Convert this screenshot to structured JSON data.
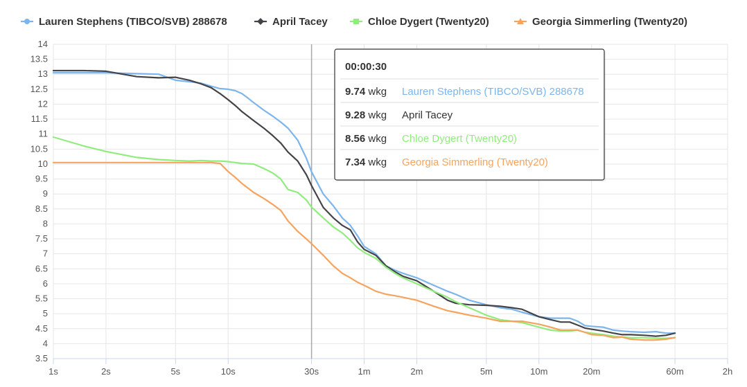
{
  "chart_data": {
    "type": "line",
    "x_scale": "log",
    "x_unit": "seconds",
    "x_ticks": [
      {
        "value": 1,
        "label": "1s"
      },
      {
        "value": 2,
        "label": "2s"
      },
      {
        "value": 5,
        "label": "5s"
      },
      {
        "value": 10,
        "label": "10s"
      },
      {
        "value": 30,
        "label": "30s"
      },
      {
        "value": 60,
        "label": "1m"
      },
      {
        "value": 120,
        "label": "2m"
      },
      {
        "value": 300,
        "label": "5m"
      },
      {
        "value": 600,
        "label": "10m"
      },
      {
        "value": 1200,
        "label": "20m"
      },
      {
        "value": 3600,
        "label": "60m"
      },
      {
        "value": 7200,
        "label": "2h"
      }
    ],
    "xlim": [
      1,
      7200
    ],
    "ylim": [
      3.5,
      14
    ],
    "y_ticks": [
      {
        "value": 3.5,
        "label": "3.5"
      },
      {
        "value": 4,
        "label": "4"
      },
      {
        "value": 4.5,
        "label": "4.5"
      },
      {
        "value": 5,
        "label": "5"
      },
      {
        "value": 5.5,
        "label": "5.5"
      },
      {
        "value": 6,
        "label": "6"
      },
      {
        "value": 6.5,
        "label": "6.5"
      },
      {
        "value": 7,
        "label": "7"
      },
      {
        "value": 7.5,
        "label": "7.5"
      },
      {
        "value": 8,
        "label": "8"
      },
      {
        "value": 8.5,
        "label": "8.5"
      },
      {
        "value": 9,
        "label": "9"
      },
      {
        "value": 9.5,
        "label": "9.5"
      },
      {
        "value": 10,
        "label": "10"
      },
      {
        "value": 10.5,
        "label": "10.5"
      },
      {
        "value": 11,
        "label": "11"
      },
      {
        "value": 11.5,
        "label": "11.5"
      },
      {
        "value": 12,
        "label": "12"
      },
      {
        "value": 12.5,
        "label": "12.5"
      },
      {
        "value": 13,
        "label": "13"
      },
      {
        "value": 13.5,
        "label": "13.5"
      },
      {
        "value": 14,
        "label": "14"
      }
    ],
    "grid": true,
    "legend_position": "top",
    "crosshair_x": 30,
    "series": [
      {
        "name": "Lauren Stephens (TIBCO/SVB) 288678",
        "color": "#7cb5ec",
        "marker": "circle",
        "points": [
          [
            1,
            13.05
          ],
          [
            1.5,
            13.05
          ],
          [
            2,
            13.05
          ],
          [
            3,
            13.02
          ],
          [
            4,
            13.0
          ],
          [
            5,
            12.8
          ],
          [
            6,
            12.75
          ],
          [
            7,
            12.7
          ],
          [
            8,
            12.6
          ],
          [
            9,
            12.52
          ],
          [
            10,
            12.5
          ],
          [
            11,
            12.45
          ],
          [
            12,
            12.35
          ],
          [
            13,
            12.2
          ],
          [
            14,
            12.05
          ],
          [
            16,
            11.8
          ],
          [
            18,
            11.6
          ],
          [
            20,
            11.4
          ],
          [
            22,
            11.2
          ],
          [
            25,
            10.8
          ],
          [
            28,
            10.2
          ],
          [
            30,
            9.74
          ],
          [
            35,
            9.0
          ],
          [
            40,
            8.6
          ],
          [
            45,
            8.2
          ],
          [
            50,
            7.95
          ],
          [
            55,
            7.6
          ],
          [
            60,
            7.25
          ],
          [
            70,
            7.0
          ],
          [
            80,
            6.6
          ],
          [
            90,
            6.45
          ],
          [
            100,
            6.35
          ],
          [
            120,
            6.2
          ],
          [
            150,
            5.95
          ],
          [
            180,
            5.75
          ],
          [
            200,
            5.65
          ],
          [
            240,
            5.45
          ],
          [
            300,
            5.3
          ],
          [
            360,
            5.2
          ],
          [
            420,
            5.15
          ],
          [
            480,
            5.05
          ],
          [
            600,
            4.9
          ],
          [
            700,
            4.85
          ],
          [
            800,
            4.85
          ],
          [
            900,
            4.85
          ],
          [
            1000,
            4.75
          ],
          [
            1100,
            4.6
          ],
          [
            1200,
            4.58
          ],
          [
            1400,
            4.55
          ],
          [
            1600,
            4.45
          ],
          [
            1800,
            4.42
          ],
          [
            2000,
            4.4
          ],
          [
            2400,
            4.38
          ],
          [
            2800,
            4.4
          ],
          [
            3200,
            4.35
          ],
          [
            3600,
            4.35
          ]
        ]
      },
      {
        "name": "April Tacey",
        "color": "#434348",
        "marker": "diamond",
        "points": [
          [
            1,
            13.12
          ],
          [
            1.5,
            13.12
          ],
          [
            2,
            13.1
          ],
          [
            2.5,
            13.0
          ],
          [
            3,
            12.92
          ],
          [
            4,
            12.88
          ],
          [
            5,
            12.9
          ],
          [
            6,
            12.8
          ],
          [
            7,
            12.68
          ],
          [
            8,
            12.55
          ],
          [
            9,
            12.35
          ],
          [
            10,
            12.15
          ],
          [
            11,
            11.95
          ],
          [
            12,
            11.75
          ],
          [
            14,
            11.45
          ],
          [
            16,
            11.2
          ],
          [
            18,
            10.95
          ],
          [
            20,
            10.7
          ],
          [
            22,
            10.4
          ],
          [
            25,
            10.1
          ],
          [
            28,
            9.65
          ],
          [
            30,
            9.28
          ],
          [
            35,
            8.55
          ],
          [
            40,
            8.2
          ],
          [
            45,
            7.95
          ],
          [
            50,
            7.8
          ],
          [
            55,
            7.4
          ],
          [
            60,
            7.15
          ],
          [
            70,
            6.95
          ],
          [
            80,
            6.6
          ],
          [
            90,
            6.4
          ],
          [
            100,
            6.25
          ],
          [
            120,
            6.1
          ],
          [
            150,
            5.75
          ],
          [
            180,
            5.45
          ],
          [
            200,
            5.35
          ],
          [
            240,
            5.3
          ],
          [
            300,
            5.28
          ],
          [
            360,
            5.25
          ],
          [
            420,
            5.2
          ],
          [
            480,
            5.15
          ],
          [
            600,
            4.9
          ],
          [
            700,
            4.8
          ],
          [
            800,
            4.72
          ],
          [
            900,
            4.72
          ],
          [
            1000,
            4.62
          ],
          [
            1100,
            4.52
          ],
          [
            1200,
            4.48
          ],
          [
            1400,
            4.42
          ],
          [
            1600,
            4.35
          ],
          [
            1800,
            4.3
          ],
          [
            2000,
            4.3
          ],
          [
            2400,
            4.28
          ],
          [
            2800,
            4.25
          ],
          [
            3200,
            4.28
          ],
          [
            3600,
            4.35
          ]
        ]
      },
      {
        "name": "Chloe Dygert (Twenty20)",
        "color": "#90ed7d",
        "marker": "square",
        "points": [
          [
            1,
            10.9
          ],
          [
            1.5,
            10.6
          ],
          [
            2,
            10.42
          ],
          [
            3,
            10.22
          ],
          [
            4,
            10.15
          ],
          [
            5,
            10.12
          ],
          [
            6,
            10.1
          ],
          [
            7,
            10.12
          ],
          [
            8,
            10.1
          ],
          [
            9,
            10.1
          ],
          [
            10,
            10.08
          ],
          [
            11,
            10.05
          ],
          [
            12,
            10.02
          ],
          [
            14,
            10.0
          ],
          [
            16,
            9.85
          ],
          [
            18,
            9.7
          ],
          [
            20,
            9.5
          ],
          [
            22,
            9.15
          ],
          [
            25,
            9.05
          ],
          [
            28,
            8.8
          ],
          [
            30,
            8.56
          ],
          [
            35,
            8.2
          ],
          [
            40,
            7.9
          ],
          [
            45,
            7.7
          ],
          [
            50,
            7.45
          ],
          [
            55,
            7.2
          ],
          [
            60,
            7.05
          ],
          [
            70,
            6.85
          ],
          [
            80,
            6.55
          ],
          [
            90,
            6.35
          ],
          [
            100,
            6.2
          ],
          [
            120,
            6.0
          ],
          [
            150,
            5.75
          ],
          [
            180,
            5.55
          ],
          [
            200,
            5.4
          ],
          [
            240,
            5.2
          ],
          [
            300,
            4.95
          ],
          [
            360,
            4.8
          ],
          [
            420,
            4.75
          ],
          [
            480,
            4.7
          ],
          [
            600,
            4.55
          ],
          [
            700,
            4.45
          ],
          [
            800,
            4.42
          ],
          [
            900,
            4.42
          ],
          [
            1000,
            4.45
          ],
          [
            1100,
            4.38
          ],
          [
            1200,
            4.35
          ],
          [
            1400,
            4.3
          ],
          [
            1600,
            4.25
          ],
          [
            1800,
            4.22
          ],
          [
            2000,
            4.2
          ],
          [
            2400,
            4.2
          ],
          [
            2800,
            4.18
          ],
          [
            3200,
            4.18
          ],
          [
            3600,
            4.2
          ]
        ]
      },
      {
        "name": "Georgia Simmerling (Twenty20)",
        "color": "#f7a35c",
        "marker": "triangle",
        "points": [
          [
            1,
            10.05
          ],
          [
            1.5,
            10.05
          ],
          [
            2,
            10.05
          ],
          [
            3,
            10.05
          ],
          [
            4,
            10.05
          ],
          [
            5,
            10.05
          ],
          [
            6,
            10.05
          ],
          [
            7,
            10.05
          ],
          [
            8,
            10.05
          ],
          [
            9,
            10.02
          ],
          [
            10,
            9.75
          ],
          [
            11,
            9.55
          ],
          [
            12,
            9.35
          ],
          [
            14,
            9.05
          ],
          [
            16,
            8.85
          ],
          [
            18,
            8.65
          ],
          [
            20,
            8.45
          ],
          [
            22,
            8.1
          ],
          [
            25,
            7.75
          ],
          [
            28,
            7.5
          ],
          [
            30,
            7.34
          ],
          [
            35,
            6.95
          ],
          [
            40,
            6.6
          ],
          [
            45,
            6.35
          ],
          [
            50,
            6.2
          ],
          [
            55,
            6.05
          ],
          [
            60,
            5.95
          ],
          [
            70,
            5.75
          ],
          [
            80,
            5.65
          ],
          [
            90,
            5.6
          ],
          [
            100,
            5.55
          ],
          [
            120,
            5.45
          ],
          [
            150,
            5.25
          ],
          [
            180,
            5.1
          ],
          [
            200,
            5.05
          ],
          [
            240,
            4.95
          ],
          [
            300,
            4.85
          ],
          [
            360,
            4.75
          ],
          [
            420,
            4.75
          ],
          [
            480,
            4.75
          ],
          [
            600,
            4.65
          ],
          [
            700,
            4.55
          ],
          [
            800,
            4.45
          ],
          [
            900,
            4.45
          ],
          [
            1000,
            4.45
          ],
          [
            1100,
            4.38
          ],
          [
            1200,
            4.3
          ],
          [
            1400,
            4.28
          ],
          [
            1600,
            4.2
          ],
          [
            1800,
            4.22
          ],
          [
            2000,
            4.15
          ],
          [
            2400,
            4.12
          ],
          [
            2800,
            4.12
          ],
          [
            3200,
            4.15
          ],
          [
            3600,
            4.2
          ]
        ]
      }
    ],
    "tooltip": {
      "time": "00:00:30",
      "unit": "wkg",
      "rows": [
        {
          "value": "9.74",
          "name": "Lauren Stephens (TIBCO/SVB) 288678",
          "color": "#7cb5ec"
        },
        {
          "value": "9.28",
          "name": "April Tacey",
          "color": "#333333"
        },
        {
          "value": "8.56",
          "name": "Chloe Dygert (Twenty20)",
          "color": "#90ed7d"
        },
        {
          "value": "7.34",
          "name": "Georgia Simmerling (Twenty20)",
          "color": "#f7a35c"
        }
      ]
    }
  }
}
